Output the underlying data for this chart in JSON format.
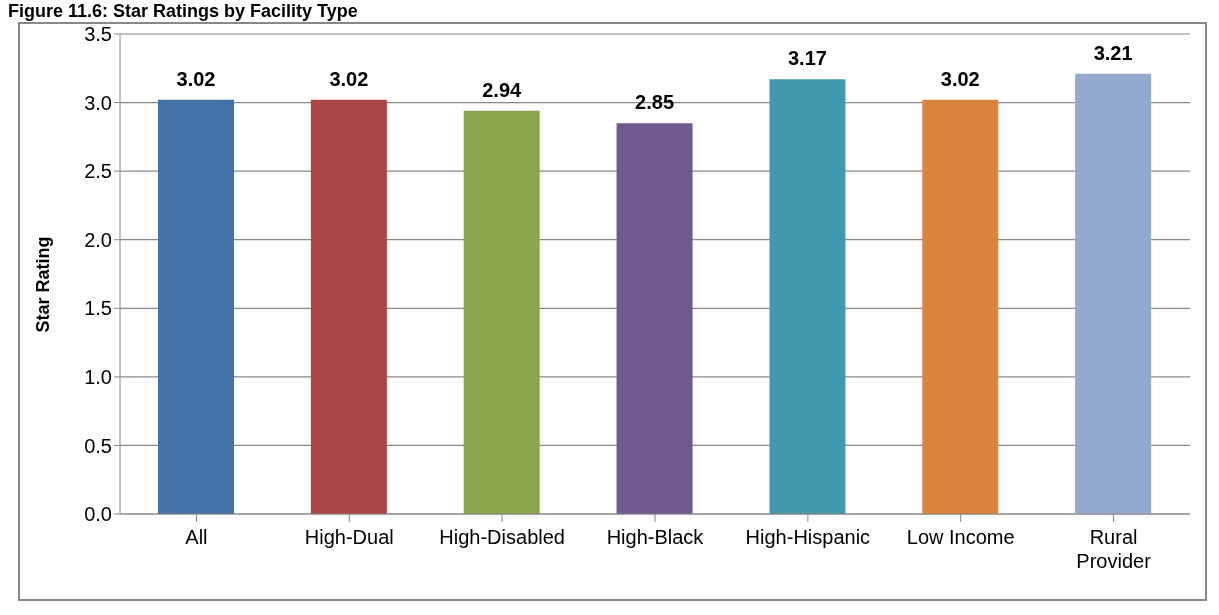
{
  "chart_data": {
    "type": "bar",
    "title": "Figure 11.6: Star Ratings by Facility Type",
    "ylabel": "Star Rating",
    "categories": [
      "All",
      "High-Dual",
      "High-Disabled",
      "High-Black",
      "High-Hispanic",
      "Low Income",
      "Rural Provider"
    ],
    "values": [
      3.02,
      3.02,
      2.94,
      2.85,
      3.17,
      3.02,
      3.21
    ],
    "colors": [
      "#4572a7",
      "#aa4643",
      "#89a54e",
      "#71588f",
      "#4198af",
      "#db843d",
      "#93a9cf"
    ],
    "ylim": [
      0,
      3.5
    ],
    "yticks": [
      {
        "value": 0,
        "label": "0.0"
      },
      {
        "value": 0.5,
        "label": "0.5"
      },
      {
        "value": 1,
        "label": "1.0"
      },
      {
        "value": 1.5,
        "label": "1.5"
      },
      {
        "value": 2,
        "label": "2.0"
      },
      {
        "value": 2.5,
        "label": "2.5"
      },
      {
        "value": 3,
        "label": "3.0"
      },
      {
        "value": 3.5,
        "label": "3.5"
      }
    ],
    "grid": "y",
    "data_labels": true
  }
}
